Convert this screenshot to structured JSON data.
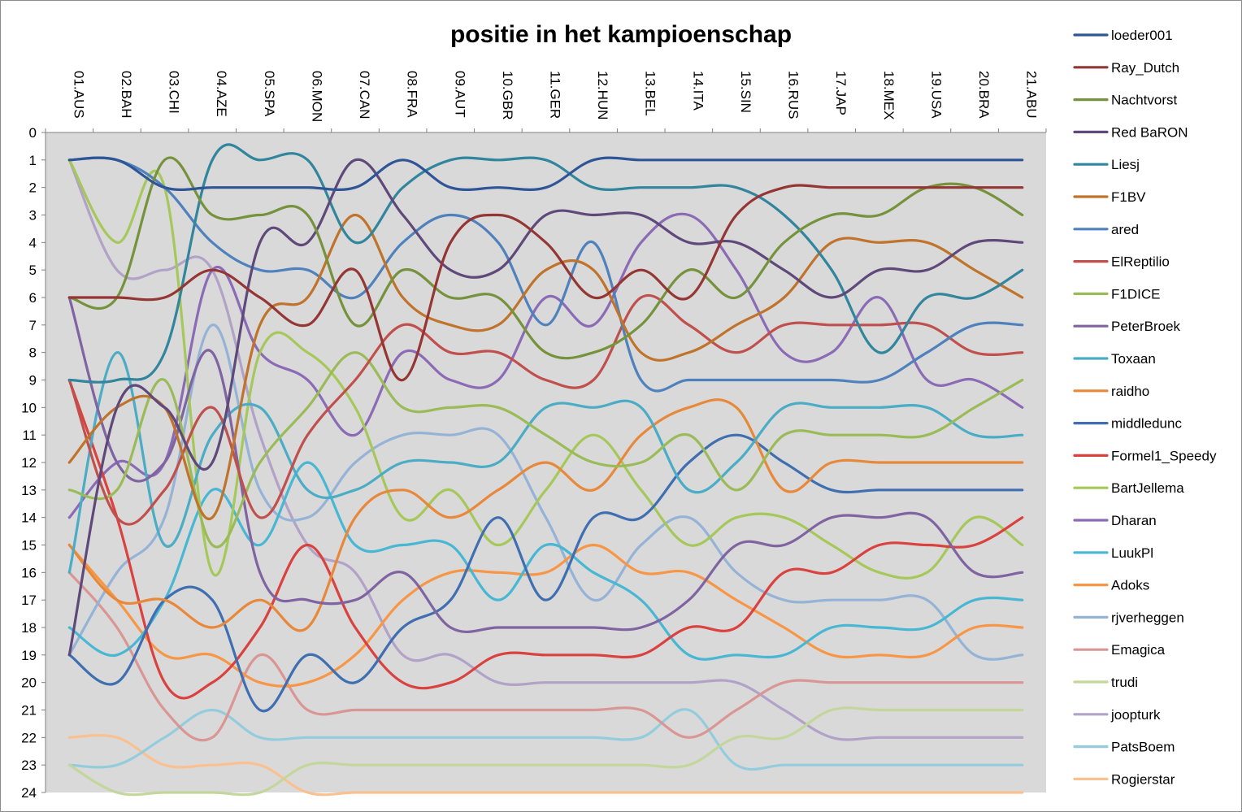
{
  "chart_data": {
    "type": "line",
    "title": "positie in het kampioenschap",
    "xlabel": "",
    "ylabel": "",
    "ylim": [
      0,
      24
    ],
    "y_inverted": true,
    "grid": false,
    "legend_position": "right",
    "plot_background": "#d9d9d9",
    "categories": [
      "01.AUS",
      "02.BAH",
      "03.CHI",
      "04.AZE",
      "05.SPA",
      "06.MON",
      "07.CAN",
      "08.FRA",
      "09.AUT",
      "10.GBR",
      "11.GER",
      "12.HUN",
      "13.BEL",
      "14.ITA",
      "15.SIN",
      "16.RUS",
      "17.JAP",
      "18.MEX",
      "19.USA",
      "20.BRA",
      "21.ABU"
    ],
    "yticks": [
      0,
      1,
      2,
      3,
      4,
      5,
      6,
      7,
      8,
      9,
      10,
      11,
      12,
      13,
      14,
      15,
      16,
      17,
      18,
      19,
      20,
      21,
      22,
      23,
      24
    ],
    "series": [
      {
        "name": "loeder001",
        "color": "#2f5597",
        "values": [
          1,
          1,
          2,
          2,
          2,
          2,
          2,
          1,
          2,
          2,
          2,
          1,
          1,
          1,
          1,
          1,
          1,
          1,
          1,
          1,
          1
        ]
      },
      {
        "name": "Ray_Dutch",
        "color": "#943634",
        "values": [
          6,
          6,
          6,
          5,
          6,
          7,
          5,
          9,
          4,
          3,
          4,
          6,
          5,
          6,
          3,
          2,
          2,
          2,
          2,
          2,
          2
        ]
      },
      {
        "name": "Nachtvorst",
        "color": "#76923c",
        "values": [
          6,
          6,
          1,
          3,
          3,
          3,
          7,
          5,
          6,
          6,
          8,
          8,
          7,
          5,
          6,
          4,
          3,
          3,
          2,
          2,
          3
        ]
      },
      {
        "name": "Red BaRON",
        "color": "#5f497a",
        "values": [
          19,
          10,
          10,
          12,
          4,
          4,
          1,
          3,
          5,
          5,
          3,
          3,
          3,
          4,
          4,
          5,
          6,
          5,
          5,
          4,
          4
        ]
      },
      {
        "name": "Liesj",
        "color": "#31859c",
        "values": [
          9,
          9,
          8,
          1,
          1,
          1,
          4,
          2,
          1,
          1,
          1,
          2,
          2,
          2,
          2,
          3,
          5,
          8,
          6,
          6,
          5
        ]
      },
      {
        "name": "F1BV",
        "color": "#c0732b",
        "values": [
          12,
          10,
          10,
          14,
          7,
          6,
          3,
          6,
          7,
          7,
          5,
          5,
          8,
          8,
          7,
          6,
          4,
          4,
          4,
          5,
          6
        ]
      },
      {
        "name": "ared",
        "color": "#4f81bd",
        "values": [
          1,
          1,
          2,
          4,
          5,
          5,
          6,
          4,
          3,
          4,
          7,
          4,
          9,
          9,
          9,
          9,
          9,
          9,
          8,
          7,
          7
        ]
      },
      {
        "name": "ElReptilio",
        "color": "#c0504d",
        "values": [
          9,
          14,
          13,
          10,
          14,
          11,
          9,
          7,
          8,
          8,
          9,
          9,
          6,
          7,
          8,
          7,
          7,
          7,
          7,
          8,
          8
        ]
      },
      {
        "name": "F1DICE",
        "color": "#9bbb59",
        "values": [
          13,
          13,
          9,
          15,
          12,
          10,
          8,
          10,
          10,
          10,
          11,
          12,
          12,
          11,
          13,
          11,
          11,
          11,
          11,
          10,
          9
        ]
      },
      {
        "name": "PeterBroek",
        "color": "#8064a2",
        "values": [
          6,
          12,
          12,
          8,
          16,
          17,
          17,
          16,
          18,
          18,
          18,
          18,
          18,
          17,
          15,
          15,
          14,
          14,
          14,
          16,
          16
        ]
      },
      {
        "name": "Toxaan",
        "color": "#4bacc6",
        "values": [
          16,
          8,
          15,
          11,
          10,
          13,
          13,
          12,
          12,
          12,
          10,
          10,
          10,
          13,
          12,
          10,
          10,
          10,
          10,
          11,
          11
        ]
      },
      {
        "name": "raidho",
        "color": "#e7883a",
        "values": [
          15,
          17,
          17,
          18,
          17,
          18,
          14,
          13,
          14,
          13,
          12,
          13,
          11,
          10,
          10,
          13,
          12,
          12,
          12,
          12,
          12
        ]
      },
      {
        "name": "middledunc",
        "color": "#3f6fb0",
        "values": [
          19,
          20,
          17,
          17,
          21,
          19,
          20,
          18,
          17,
          14,
          17,
          14,
          14,
          12,
          11,
          12,
          13,
          13,
          13,
          13,
          13
        ]
      },
      {
        "name": "Formel1_Speedy",
        "color": "#d9423f",
        "values": [
          9,
          14,
          20,
          20,
          18,
          15,
          18,
          20,
          20,
          19,
          19,
          19,
          19,
          18,
          18,
          16,
          16,
          15,
          15,
          15,
          14
        ]
      },
      {
        "name": "BartJellema",
        "color": "#a6c85a",
        "values": [
          1,
          4,
          2,
          16,
          8,
          8,
          10,
          14,
          13,
          15,
          13,
          11,
          13,
          15,
          14,
          14,
          15,
          16,
          16,
          14,
          15
        ]
      },
      {
        "name": "Dharan",
        "color": "#8b6bb5",
        "values": [
          14,
          12,
          12,
          5,
          8,
          9,
          11,
          8,
          9,
          9,
          6,
          7,
          4,
          3,
          5,
          8,
          8,
          6,
          9,
          9,
          10
        ]
      },
      {
        "name": "LuukPl",
        "color": "#48b7d3",
        "values": [
          18,
          19,
          17,
          13,
          15,
          12,
          15,
          15,
          15,
          17,
          15,
          16,
          17,
          19,
          19,
          19,
          18,
          18,
          18,
          17,
          17
        ]
      },
      {
        "name": "Adoks",
        "color": "#f79646",
        "values": [
          15,
          17,
          19,
          19,
          20,
          20,
          19,
          17,
          16,
          16,
          16,
          15,
          16,
          16,
          17,
          18,
          19,
          19,
          19,
          18,
          18
        ]
      },
      {
        "name": "rjverheggen",
        "color": "#95b3d7",
        "values": [
          19,
          16,
          14,
          7,
          13,
          14,
          12,
          11,
          11,
          11,
          14,
          17,
          15,
          14,
          16,
          17,
          17,
          17,
          17,
          19,
          19
        ]
      },
      {
        "name": "Emagica",
        "color": "#d99694",
        "values": [
          16,
          18,
          21,
          22,
          19,
          21,
          21,
          21,
          21,
          21,
          21,
          21,
          21,
          22,
          21,
          20,
          20,
          20,
          20,
          20,
          20
        ]
      },
      {
        "name": "trudi",
        "color": "#c3d69b",
        "values": [
          23,
          24,
          24,
          24,
          24,
          23,
          23,
          23,
          23,
          23,
          23,
          23,
          23,
          23,
          22,
          22,
          21,
          21,
          21,
          21,
          21
        ]
      },
      {
        "name": "joopturk",
        "color": "#b2a2c7",
        "values": [
          1,
          5,
          5,
          5,
          11,
          15,
          16,
          19,
          19,
          20,
          20,
          20,
          20,
          20,
          20,
          21,
          22,
          22,
          22,
          22,
          22
        ]
      },
      {
        "name": "PatsBoem",
        "color": "#93cddd",
        "values": [
          23,
          23,
          22,
          21,
          22,
          22,
          22,
          22,
          22,
          22,
          22,
          22,
          22,
          21,
          23,
          23,
          23,
          23,
          23,
          23,
          23
        ]
      },
      {
        "name": "Rogierstar",
        "color": "#fac090",
        "values": [
          22,
          22,
          23,
          23,
          23,
          24,
          24,
          24,
          24,
          24,
          24,
          24,
          24,
          24,
          24,
          24,
          24,
          24,
          24,
          24,
          24
        ]
      }
    ]
  }
}
